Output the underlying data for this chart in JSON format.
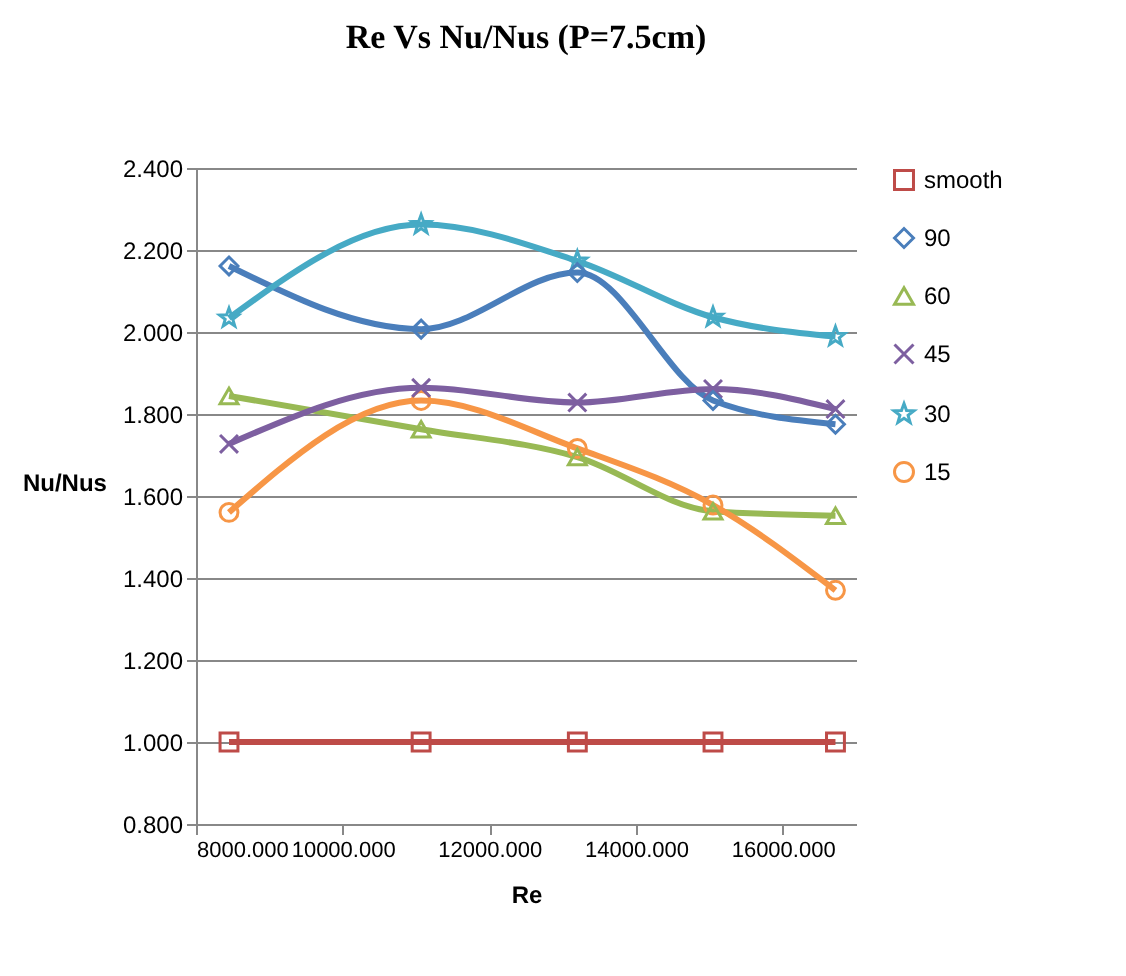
{
  "chart_data": {
    "type": "line",
    "title": "Re Vs Nu/Nus (P=7.5cm)",
    "xlabel": "Re",
    "ylabel": "Nu/Nus",
    "x": [
      8450,
      11070,
      13200,
      15050,
      16720
    ],
    "series": [
      {
        "name": "smooth",
        "color": "#be4b48",
        "marker": "square",
        "values": [
          1.0,
          1.0,
          1.0,
          1.0,
          1.0
        ]
      },
      {
        "name": "90",
        "color": "#4a7ebb",
        "marker": "diamond",
        "values": [
          2.161,
          2.007,
          2.145,
          1.833,
          1.775
        ]
      },
      {
        "name": "60",
        "color": "#98b954",
        "marker": "triangle",
        "values": [
          1.844,
          1.763,
          1.695,
          1.563,
          1.552
        ]
      },
      {
        "name": "45",
        "color": "#7d5fa0",
        "marker": "cross",
        "values": [
          1.727,
          1.864,
          1.828,
          1.861,
          1.812
        ]
      },
      {
        "name": "30",
        "color": "#46aac5",
        "marker": "star",
        "values": [
          2.034,
          2.262,
          2.173,
          2.036,
          1.989
        ]
      },
      {
        "name": "15",
        "color": "#f79646",
        "marker": "circle",
        "values": [
          1.56,
          1.833,
          1.716,
          1.578,
          1.37
        ]
      }
    ],
    "xlim": [
      8000,
      17000
    ],
    "xticks": [
      {
        "value": 8000,
        "label": "8000.000"
      },
      {
        "value": 10000,
        "label": "10000.000"
      },
      {
        "value": 12000,
        "label": "12000.000"
      },
      {
        "value": 14000,
        "label": "14000.000"
      },
      {
        "value": 16000,
        "label": "16000.000"
      }
    ],
    "ylim": [
      0.8,
      2.4
    ],
    "yticks": [
      {
        "value": 0.8,
        "label": "0.800"
      },
      {
        "value": 1.0,
        "label": "1.000"
      },
      {
        "value": 1.2,
        "label": "1.200"
      },
      {
        "value": 1.4,
        "label": "1.400"
      },
      {
        "value": 1.6,
        "label": "1.600"
      },
      {
        "value": 1.8,
        "label": "1.800"
      },
      {
        "value": 2.0,
        "label": "2.000"
      },
      {
        "value": 2.2,
        "label": "2.200"
      },
      {
        "value": 2.4,
        "label": "2.400"
      }
    ],
    "grid": "y",
    "legend": "right",
    "line_style": "solid"
  }
}
